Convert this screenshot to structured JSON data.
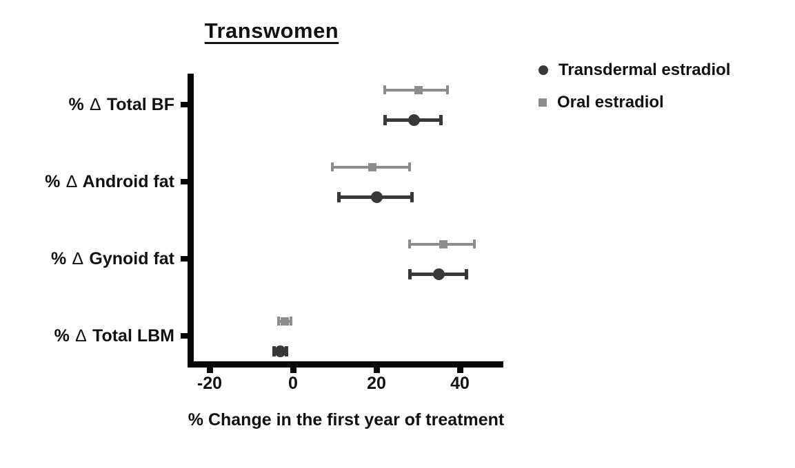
{
  "figure": {
    "title": "Transwomen",
    "x_axis_label": "% Change in the first year of treatment"
  },
  "legend": {
    "items": [
      {
        "label": "Transdermal estradiol",
        "marker": "circle",
        "color": "#3a3a3a"
      },
      {
        "label": "Oral estradiol",
        "marker": "square",
        "color": "#8c8c8c"
      }
    ]
  },
  "chart_data": {
    "type": "scatter",
    "subtype": "horizontal-dot-plot-with-error-bars",
    "title": "Transwomen",
    "xlabel": "% Change in the first year of treatment",
    "ylabel": "",
    "categories": [
      "% ∆ Total BF",
      "% ∆ Android fat",
      "% ∆ Gynoid fat",
      "% ∆ Total LBM"
    ],
    "x_ticks": [
      -20,
      0,
      20,
      40
    ],
    "xlim": [
      -25,
      50
    ],
    "grid": false,
    "legend_position": "top-right",
    "axis_color": "#070707",
    "series": [
      {
        "name": "Transdermal estradiol",
        "marker": "circle",
        "color": "#383838",
        "values": [
          {
            "category": "% ∆ Total BF",
            "mean": 29,
            "lo": 22,
            "hi": 35.5
          },
          {
            "category": "% ∆ Android fat",
            "mean": 20,
            "lo": 11,
            "hi": 28.5
          },
          {
            "category": "% ∆ Gynoid fat",
            "mean": 35,
            "lo": 28,
            "hi": 41.5
          },
          {
            "category": "% ∆ Total LBM",
            "mean": -3,
            "lo": -4.5,
            "hi": -1.5
          }
        ]
      },
      {
        "name": "Oral estradiol",
        "marker": "square",
        "color": "#8c8c8c",
        "values": [
          {
            "category": "% ∆ Total BF",
            "mean": 30,
            "lo": 22,
            "hi": 37
          },
          {
            "category": "% ∆ Android fat",
            "mean": 19,
            "lo": 9.5,
            "hi": 28
          },
          {
            "category": "% ∆ Gynoid fat",
            "mean": 36,
            "lo": 28,
            "hi": 43.5
          },
          {
            "category": "% ∆ Total LBM",
            "mean": -2,
            "lo": -3.5,
            "hi": -0.5
          }
        ]
      }
    ]
  }
}
